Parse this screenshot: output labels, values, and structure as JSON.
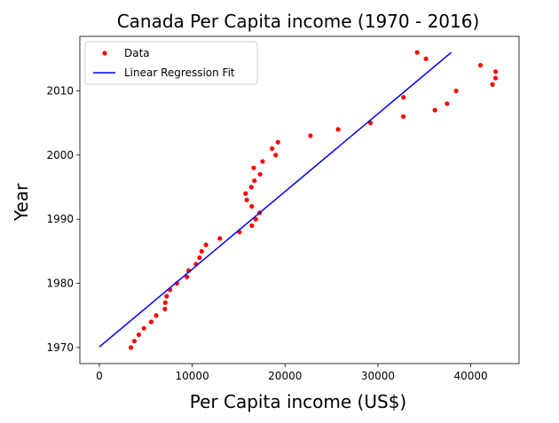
{
  "chart_data": {
    "type": "scatter",
    "title": "Canada Per Capita income (1970 - 2016)",
    "xlabel": "Per Capita income (US$)",
    "ylabel": "Year",
    "xlim": [
      -2100,
      45200
    ],
    "ylim": [
      1967.5,
      2018.5
    ],
    "xticks": [
      0,
      10000,
      20000,
      30000,
      40000
    ],
    "yticks": [
      1970,
      1980,
      1990,
      2000,
      2010
    ],
    "grid": false,
    "legend_position": "top-left",
    "series": [
      {
        "name": "Data",
        "kind": "scatter",
        "color": "#ff0000",
        "points": [
          {
            "x": 3399,
            "y": 1970
          },
          {
            "x": 3768,
            "y": 1971
          },
          {
            "x": 4252,
            "y": 1972
          },
          {
            "x": 4805,
            "y": 1973
          },
          {
            "x": 5577,
            "y": 1974
          },
          {
            "x": 6120,
            "y": 1975
          },
          {
            "x": 7062,
            "y": 1976
          },
          {
            "x": 7101,
            "y": 1977
          },
          {
            "x": 7247,
            "y": 1978
          },
          {
            "x": 7603,
            "y": 1979
          },
          {
            "x": 8355,
            "y": 1980
          },
          {
            "x": 9434,
            "y": 1981
          },
          {
            "x": 9619,
            "y": 1982
          },
          {
            "x": 10416,
            "y": 1983
          },
          {
            "x": 10790,
            "y": 1984
          },
          {
            "x": 11018,
            "y": 1985
          },
          {
            "x": 11482,
            "y": 1986
          },
          {
            "x": 12974,
            "y": 1987
          },
          {
            "x": 15080,
            "y": 1988
          },
          {
            "x": 16426,
            "y": 1989
          },
          {
            "x": 16838,
            "y": 1990
          },
          {
            "x": 17266,
            "y": 1991
          },
          {
            "x": 16412,
            "y": 1992
          },
          {
            "x": 15875,
            "y": 1993
          },
          {
            "x": 15755,
            "y": 1994
          },
          {
            "x": 16369,
            "y": 1995
          },
          {
            "x": 16699,
            "y": 1996
          },
          {
            "x": 17310,
            "y": 1997
          },
          {
            "x": 16622,
            "y": 1998
          },
          {
            "x": 17581,
            "y": 1999
          },
          {
            "x": 18987,
            "y": 2000
          },
          {
            "x": 18601,
            "y": 2001
          },
          {
            "x": 19232,
            "y": 2002
          },
          {
            "x": 22739,
            "y": 2003
          },
          {
            "x": 25719,
            "y": 2004
          },
          {
            "x": 29199,
            "y": 2005
          },
          {
            "x": 32738,
            "y": 2006
          },
          {
            "x": 36144,
            "y": 2007
          },
          {
            "x": 37446,
            "y": 2008
          },
          {
            "x": 32755,
            "y": 2009
          },
          {
            "x": 38420,
            "y": 2010
          },
          {
            "x": 42334,
            "y": 2011
          },
          {
            "x": 42665,
            "y": 2012
          },
          {
            "x": 42676,
            "y": 2013
          },
          {
            "x": 41039,
            "y": 2014
          },
          {
            "x": 35175,
            "y": 2015
          },
          {
            "x": 34229,
            "y": 2016
          }
        ]
      },
      {
        "name": "Linear Regression Fit",
        "kind": "line",
        "color": "#0000ff",
        "points": [
          {
            "x": 0,
            "y": 1970.1
          },
          {
            "x": 37900,
            "y": 2016.0
          }
        ]
      }
    ]
  }
}
